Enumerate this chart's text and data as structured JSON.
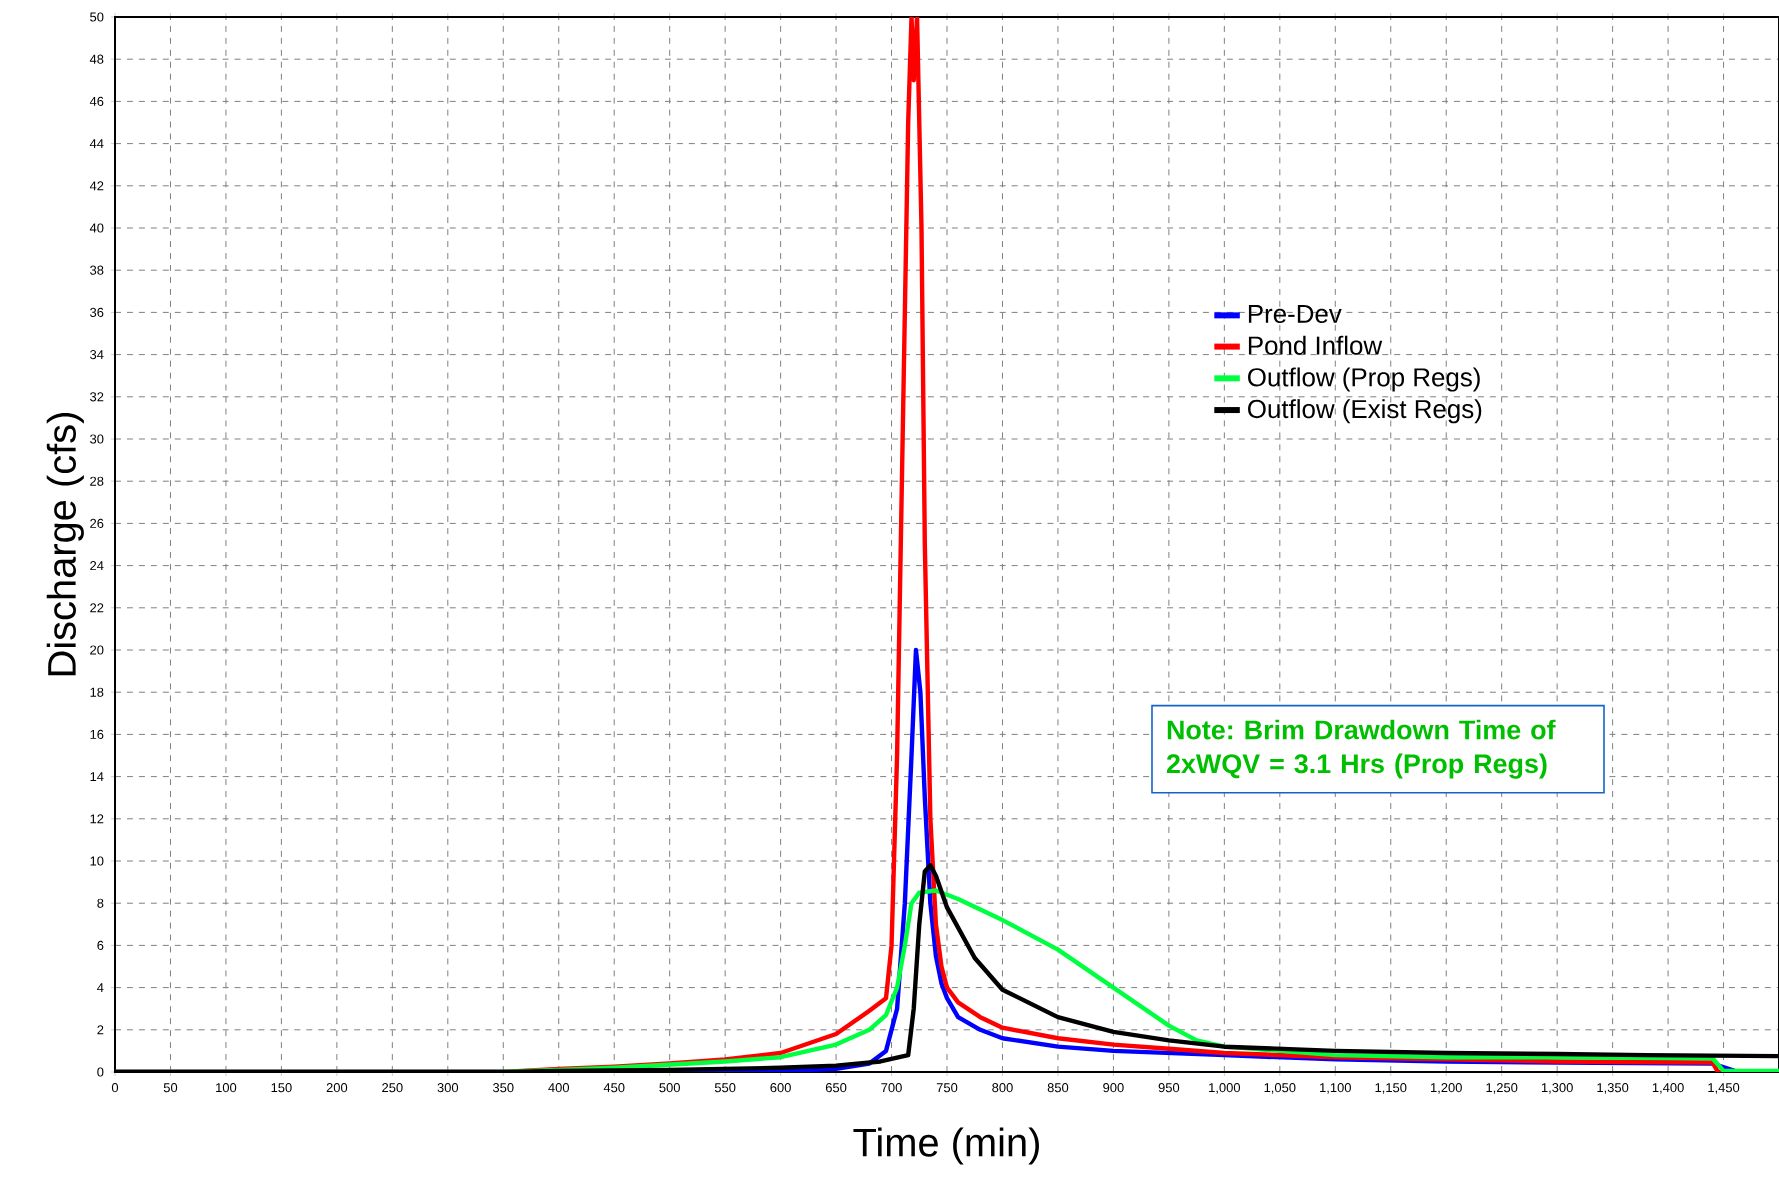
{
  "chart_data": {
    "type": "line",
    "xlabel": "Time (min)",
    "ylabel": "Discharge (cfs)",
    "xlim": [
      0,
      1500
    ],
    "ylim": [
      0,
      50
    ],
    "xticks": [
      0,
      50,
      100,
      150,
      200,
      250,
      300,
      350,
      400,
      450,
      500,
      550,
      600,
      650,
      700,
      750,
      800,
      850,
      900,
      950,
      {
        "value": 1000,
        "label": "1,000"
      },
      {
        "value": 1050,
        "label": "1,050"
      },
      {
        "value": 1100,
        "label": "1,100"
      },
      {
        "value": 1150,
        "label": "1,150"
      },
      {
        "value": 1200,
        "label": "1,200"
      },
      {
        "value": 1250,
        "label": "1,250"
      },
      {
        "value": 1300,
        "label": "1,300"
      },
      {
        "value": 1350,
        "label": "1,350"
      },
      {
        "value": 1400,
        "label": "1,400"
      },
      {
        "value": 1450,
        "label": "1,450"
      }
    ],
    "yticks": [
      0,
      2,
      4,
      6,
      8,
      10,
      12,
      14,
      16,
      18,
      20,
      22,
      24,
      26,
      28,
      30,
      32,
      34,
      36,
      38,
      40,
      42,
      44,
      46,
      48,
      50
    ],
    "grid": true,
    "legend": "right",
    "marker": "none",
    "line_style": "solid",
    "annotations": [
      "Note: Brim Drawdown Time of 2xWQV = 3.1 Hrs (Prop Regs)"
    ],
    "series": [
      {
        "name": "Pre-Dev",
        "color": "#0000ff",
        "x": [
          0,
          500,
          600,
          650,
          680,
          695,
          705,
          712,
          718,
          722,
          726,
          730,
          735,
          740,
          745,
          750,
          760,
          780,
          800,
          850,
          900,
          1000,
          1100,
          1200,
          1300,
          1440,
          1460,
          1500
        ],
        "values": [
          0,
          0,
          0.05,
          0.15,
          0.4,
          1,
          3,
          8,
          15,
          20,
          18,
          13,
          8,
          5.5,
          4.2,
          3.5,
          2.6,
          2.0,
          1.6,
          1.2,
          1.0,
          0.8,
          0.6,
          0.5,
          0.45,
          0.4,
          0.05,
          0
        ]
      },
      {
        "name": "Pond Inflow",
        "color": "#ff0000",
        "x": [
          0,
          350,
          400,
          450,
          500,
          550,
          600,
          650,
          680,
          695,
          700,
          705,
          710,
          715,
          718,
          720,
          723,
          727,
          730,
          735,
          740,
          745,
          750,
          760,
          780,
          800,
          850,
          900,
          950,
          1000,
          1100,
          1200,
          1300,
          1440,
          1445,
          1500
        ],
        "values": [
          0,
          0,
          0.15,
          0.25,
          0.4,
          0.6,
          0.9,
          1.8,
          2.9,
          3.5,
          6,
          15,
          30,
          45,
          50,
          47,
          50,
          40,
          25,
          12,
          7,
          5,
          4,
          3.3,
          2.6,
          2.1,
          1.6,
          1.3,
          1.1,
          0.9,
          0.7,
          0.6,
          0.5,
          0.45,
          0,
          0
        ]
      },
      {
        "name": "Outflow (Prop Regs)",
        "color": "#00ff40",
        "x": [
          0,
          350,
          400,
          450,
          500,
          550,
          600,
          650,
          680,
          695,
          705,
          712,
          718,
          725,
          740,
          760,
          800,
          850,
          900,
          950,
          975,
          1000,
          1050,
          1100,
          1200,
          1300,
          1440,
          1450,
          1500
        ],
        "values": [
          0,
          0,
          0.1,
          0.2,
          0.35,
          0.5,
          0.7,
          1.3,
          2,
          2.7,
          4,
          6,
          8,
          8.5,
          8.6,
          8.2,
          7.2,
          5.8,
          4.0,
          2.2,
          1.5,
          1.2,
          1.0,
          0.8,
          0.7,
          0.7,
          0.65,
          0.05,
          0.05
        ]
      },
      {
        "name": "Outflow (Exist Regs)",
        "color": "#000000",
        "x": [
          0,
          350,
          400,
          500,
          600,
          650,
          690,
          715,
          720,
          725,
          730,
          735,
          740,
          750,
          775,
          800,
          850,
          900,
          950,
          1000,
          1100,
          1200,
          1300,
          1380,
          1500
        ],
        "values": [
          0,
          0,
          0.05,
          0.1,
          0.2,
          0.3,
          0.5,
          0.8,
          3,
          7,
          9.5,
          9.8,
          9.3,
          7.8,
          5.4,
          3.9,
          2.6,
          1.9,
          1.5,
          1.2,
          1.0,
          0.9,
          0.85,
          0.8,
          0.75
        ]
      }
    ]
  }
}
